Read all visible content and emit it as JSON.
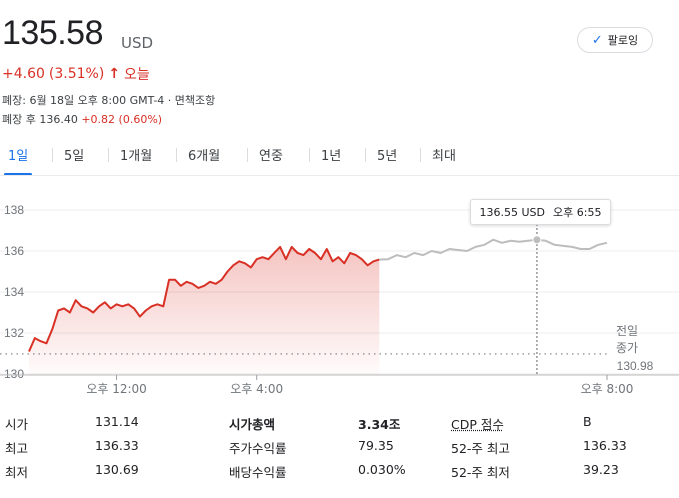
{
  "price": "135.58",
  "currency": "USD",
  "follow_label": "팔로잉",
  "change": {
    "amount": "+4.60",
    "percent": "(3.51%)",
    "period": "오늘"
  },
  "meta": {
    "closed_line": "폐장: 6월 18일 오후 8:00 GMT-4 · 면책조항",
    "after_label": "폐장 후 136.40",
    "after_change": "+0.82 (0.60%)"
  },
  "tabs": [
    "1일",
    "5일",
    "1개월",
    "6개월",
    "연중",
    "1년",
    "5년",
    "최대"
  ],
  "tooltip": {
    "value": "136.55 USD",
    "time": "오후 6:55"
  },
  "prev_close": {
    "label1": "전일",
    "label2": "종가",
    "value": "130.98"
  },
  "colors": {
    "up": "#d93025",
    "accent": "#1a73e8",
    "afterhours": "#bdbdbd"
  },
  "chart_data": {
    "type": "line",
    "y_ticks": [
      "138",
      "136",
      "134",
      "132",
      "130"
    ],
    "x_ticks": [
      "오후 12:00",
      "오후 4:00",
      "오후 8:00"
    ],
    "ylim": [
      130,
      138
    ],
    "prev_close": 130.98,
    "regular_session": [
      [
        "09:30",
        131.1
      ],
      [
        "09:40",
        131.75
      ],
      [
        "09:50",
        131.6
      ],
      [
        "10:00",
        131.5
      ],
      [
        "10:10",
        132.2
      ],
      [
        "10:20",
        133.1
      ],
      [
        "10:30",
        133.2
      ],
      [
        "10:40",
        133.0
      ],
      [
        "10:50",
        133.6
      ],
      [
        "11:00",
        133.3
      ],
      [
        "11:10",
        133.2
      ],
      [
        "11:20",
        133.0
      ],
      [
        "11:30",
        133.3
      ],
      [
        "11:40",
        133.5
      ],
      [
        "11:50",
        133.2
      ],
      [
        "12:00",
        133.4
      ],
      [
        "12:10",
        133.3
      ],
      [
        "12:20",
        133.4
      ],
      [
        "12:30",
        133.2
      ],
      [
        "12:40",
        132.8
      ],
      [
        "12:50",
        133.1
      ],
      [
        "13:00",
        133.3
      ],
      [
        "13:10",
        133.4
      ],
      [
        "13:20",
        133.3
      ],
      [
        "13:30",
        134.6
      ],
      [
        "13:40",
        134.6
      ],
      [
        "13:50",
        134.3
      ],
      [
        "14:00",
        134.5
      ],
      [
        "14:10",
        134.4
      ],
      [
        "14:20",
        134.2
      ],
      [
        "14:30",
        134.3
      ],
      [
        "14:40",
        134.5
      ],
      [
        "14:50",
        134.4
      ],
      [
        "15:00",
        134.6
      ],
      [
        "15:10",
        135.0
      ],
      [
        "15:20",
        135.3
      ],
      [
        "15:30",
        135.5
      ],
      [
        "15:40",
        135.4
      ],
      [
        "15:50",
        135.2
      ],
      [
        "16:00",
        135.6
      ],
      [
        "16:10",
        135.7
      ],
      [
        "16:20",
        135.6
      ],
      [
        "16:30",
        135.9
      ],
      [
        "16:40",
        136.2
      ],
      [
        "16:50",
        135.6
      ],
      [
        "17:00",
        136.2
      ],
      [
        "17:10",
        135.9
      ],
      [
        "17:20",
        135.8
      ],
      [
        "17:30",
        136.1
      ],
      [
        "17:40",
        135.9
      ],
      [
        "17:50",
        135.6
      ],
      [
        "18:00",
        136.1
      ],
      [
        "18:10",
        135.5
      ],
      [
        "18:20",
        135.7
      ],
      [
        "18:30",
        135.4
      ],
      [
        "18:40",
        135.9
      ],
      [
        "18:50",
        135.8
      ],
      [
        "19:00",
        135.6
      ],
      [
        "19:10",
        135.3
      ],
      [
        "19:20",
        135.5
      ],
      [
        "19:30",
        135.58
      ]
    ],
    "after_hours": [
      [
        "19:30",
        135.58
      ],
      [
        "19:45",
        135.6
      ],
      [
        "20:00",
        135.8
      ],
      [
        "20:15",
        135.7
      ],
      [
        "20:30",
        135.9
      ],
      [
        "20:45",
        135.8
      ],
      [
        "21:00",
        136.0
      ],
      [
        "21:15",
        135.9
      ],
      [
        "21:30",
        136.1
      ],
      [
        "21:45",
        136.05
      ],
      [
        "22:00",
        136.0
      ],
      [
        "22:15",
        136.2
      ],
      [
        "22:30",
        136.3
      ],
      [
        "22:45",
        136.55
      ],
      [
        "23:00",
        136.4
      ],
      [
        "23:15",
        136.5
      ],
      [
        "23:30",
        136.45
      ],
      [
        "23:45",
        136.5
      ],
      [
        "24:00",
        136.55
      ],
      [
        "24:15",
        136.5
      ],
      [
        "24:30",
        136.3
      ],
      [
        "24:45",
        136.25
      ],
      [
        "25:00",
        136.2
      ],
      [
        "25:15",
        136.1
      ],
      [
        "25:30",
        136.1
      ],
      [
        "25:45",
        136.3
      ],
      [
        "26:00",
        136.4
      ]
    ]
  },
  "stats": [
    [
      {
        "label": "시가",
        "value": "131.14"
      },
      {
        "label": "시가총액",
        "value": "3.34조"
      },
      {
        "label": "CDP 점수",
        "value": "B"
      }
    ],
    [
      {
        "label": "최고",
        "value": "136.33"
      },
      {
        "label": "주가수익률",
        "value": "79.35"
      },
      {
        "label": "52-주 최고",
        "value": "136.33"
      }
    ],
    [
      {
        "label": "최저",
        "value": "130.69"
      },
      {
        "label": "배당수익률",
        "value": "0.030%"
      },
      {
        "label": "52-주 최저",
        "value": "39.23"
      }
    ]
  ]
}
